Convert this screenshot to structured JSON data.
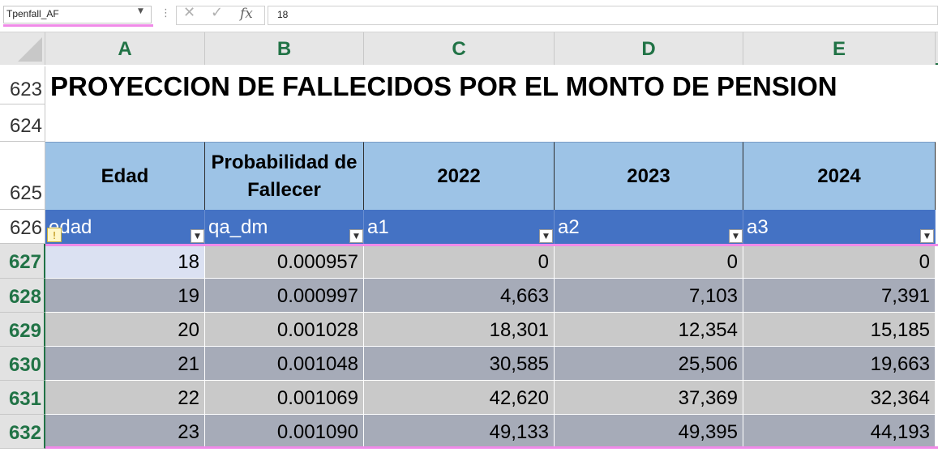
{
  "formula_bar": {
    "name_box": "Tpenfall_AF",
    "formula": "18",
    "dots": "⋮",
    "cancel_glyph": "✕",
    "enter_glyph": "✓",
    "fx_glyph": "fx"
  },
  "columns": [
    "A",
    "B",
    "C",
    "D",
    "E"
  ],
  "row_numbers": [
    "623",
    "624",
    "625",
    "626",
    "627",
    "628",
    "629",
    "630",
    "631",
    "632"
  ],
  "title": "PROYECCION DE FALLECIDOS POR EL MONTO DE PENSION",
  "header_labels": [
    "Edad",
    "Probabilidad de Fallecer",
    "2022",
    "2023",
    "2024"
  ],
  "table_headers": [
    "edad",
    "qa_dm",
    "a1",
    "a2",
    "a3"
  ],
  "rows": [
    [
      "18",
      "0.000957",
      "0",
      "0",
      "0"
    ],
    [
      "19",
      "0.000997",
      "4,663",
      "7,103",
      "7,391"
    ],
    [
      "20",
      "0.001028",
      "18,301",
      "12,354",
      "15,185"
    ],
    [
      "21",
      "0.001048",
      "30,585",
      "25,506",
      "19,663"
    ],
    [
      "22",
      "0.001069",
      "42,620",
      "37,369",
      "32,364"
    ],
    [
      "23",
      "0.001090",
      "49,133",
      "49,395",
      "44,193"
    ]
  ],
  "colors": {
    "accent_green": "#217346",
    "table_header_blue": "#4472c4",
    "light_blue_header": "#9dc3e6",
    "band_light": "#c9c9c9",
    "band_dark": "#a6abb8",
    "highlight_pink": "#f08ae8"
  },
  "icons": {
    "filter": "dropdown-filter-icon",
    "warning": "warning-icon"
  }
}
